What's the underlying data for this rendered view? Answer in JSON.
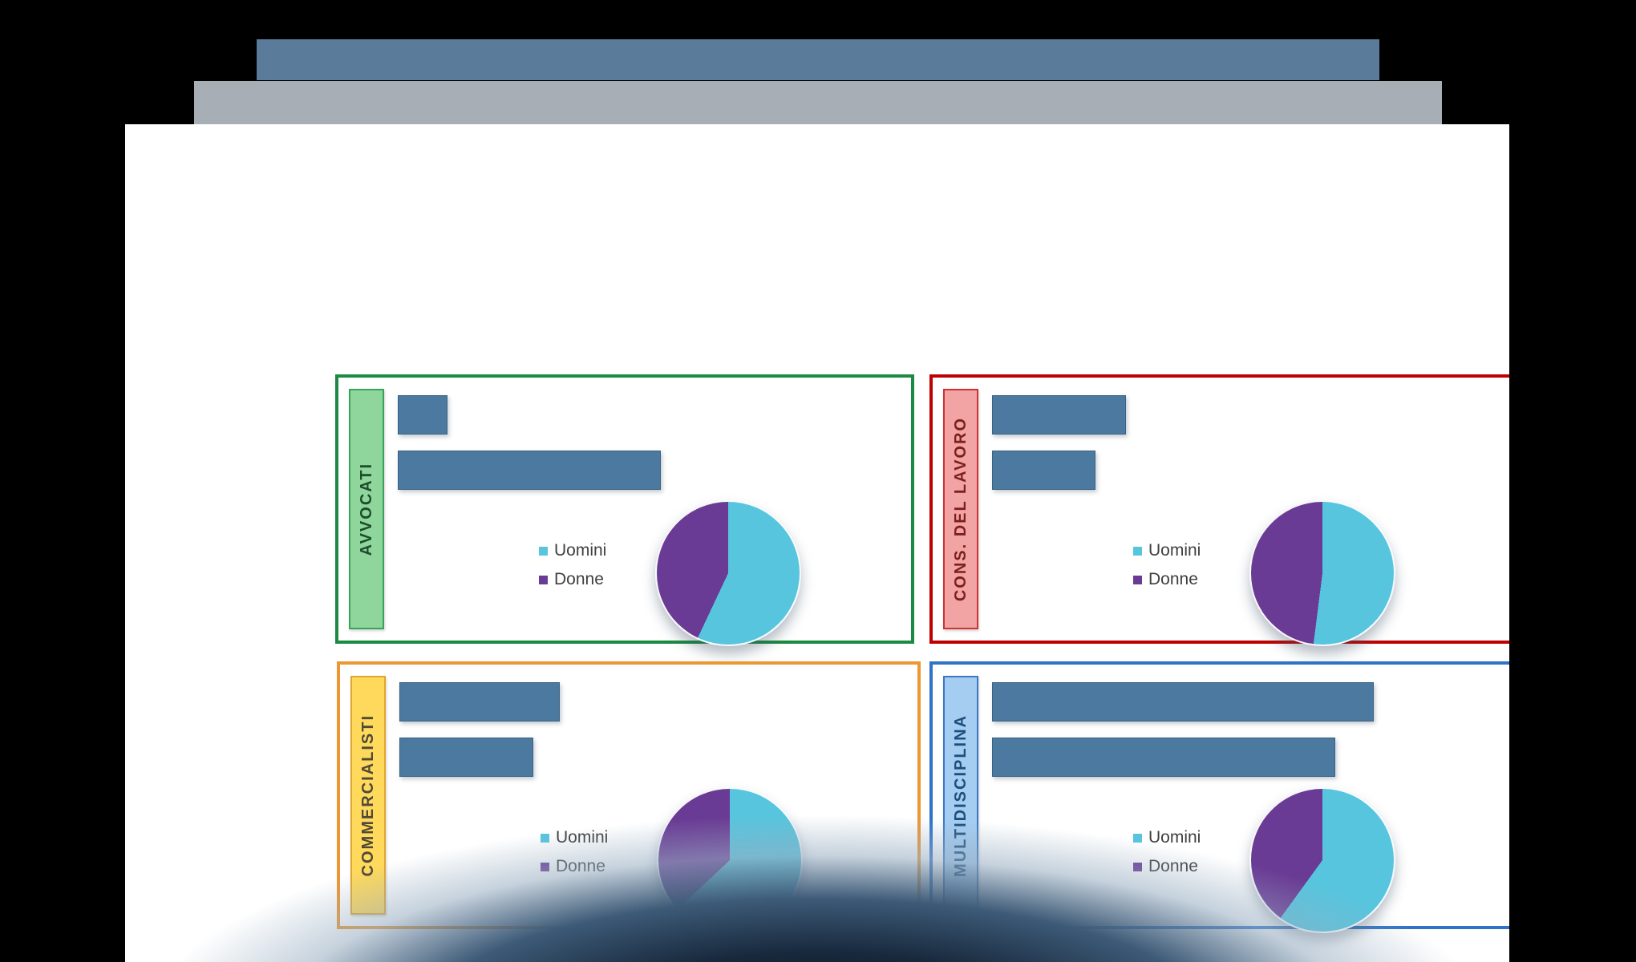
{
  "scene": {
    "type": "presentation-slide",
    "background_color": "#000000",
    "slide_color": "#ffffff",
    "header_bars": {
      "accent_bar_color": "#5a7b99",
      "subtitle_bar_color": "#a7aeb6"
    },
    "note": "slide shows 4 bordered panels, each with an unlabeled horizontal bar pair and a Uomini/Donne pie chart"
  },
  "chart_data": [
    {
      "panel": "AVVOCATI",
      "type": "combo",
      "accent": {
        "border": "#1b8a42",
        "label_bg": "#8fd69d",
        "label_border": "#39a35c",
        "label_text": "#1e4d2b"
      },
      "bar_chart": {
        "type": "bar",
        "orientation": "horizontal",
        "bar_color": "#4c79a0",
        "values_pct_of_longest": [
          13,
          69
        ],
        "axis_visible": false
      },
      "pie_chart": {
        "type": "pie",
        "labels": [
          "Uomini",
          "Donne"
        ],
        "values_pct": [
          57,
          43
        ],
        "colors": [
          "#58c5de",
          "#6a3b94"
        ],
        "start_angle": "12 o'clock clockwise",
        "legend_position": "left of pie"
      }
    },
    {
      "panel": "CONS.  DEL LAVORO",
      "type": "combo",
      "accent": {
        "border": "#c00000",
        "label_bg": "#f2a3a3",
        "label_border": "#cc3333",
        "label_text": "#7c1f1f"
      },
      "bar_chart": {
        "type": "bar",
        "orientation": "horizontal",
        "bar_color": "#4c79a0",
        "values_pct_of_longest": [
          35,
          27
        ],
        "axis_visible": false
      },
      "pie_chart": {
        "type": "pie",
        "labels": [
          "Uomini",
          "Donne"
        ],
        "values_pct": [
          52,
          48
        ],
        "colors": [
          "#58c5de",
          "#6a3b94"
        ],
        "start_angle": "12 o'clock clockwise",
        "legend_position": "left of pie"
      }
    },
    {
      "panel": "COMMERCIALISTI",
      "type": "combo",
      "accent": {
        "border": "#eb9733",
        "label_bg": "#ffd95c",
        "label_border": "#e2a62e",
        "label_text": "#4f4a35"
      },
      "bar_chart": {
        "type": "bar",
        "orientation": "horizontal",
        "bar_color": "#4c79a0",
        "values_pct_of_longest": [
          42,
          35
        ],
        "axis_visible": false
      },
      "pie_chart": {
        "type": "pie",
        "labels": [
          "Uomini",
          "Donne"
        ],
        "values_pct": [
          63,
          37
        ],
        "colors": [
          "#58c5de",
          "#6a3b94"
        ],
        "start_angle": "12 o'clock clockwise",
        "legend_position": "left of pie"
      }
    },
    {
      "panel": "MULTIDISCIPLINA",
      "type": "combo",
      "accent": {
        "border": "#2e73c8",
        "label_bg": "#a5cdf2",
        "label_border": "#3b78c4",
        "label_text": "#1d4f7c"
      },
      "bar_chart": {
        "type": "bar",
        "orientation": "horizontal",
        "bar_color": "#4c79a0",
        "values_pct_of_longest": [
          100,
          90
        ],
        "axis_visible": false
      },
      "pie_chart": {
        "type": "pie",
        "labels": [
          "Uomini",
          "Donne"
        ],
        "values_pct": [
          60,
          40
        ],
        "colors": [
          "#58c5de",
          "#6a3b94"
        ],
        "start_angle": "12 o'clock clockwise",
        "legend_position": "left of pie"
      }
    }
  ]
}
